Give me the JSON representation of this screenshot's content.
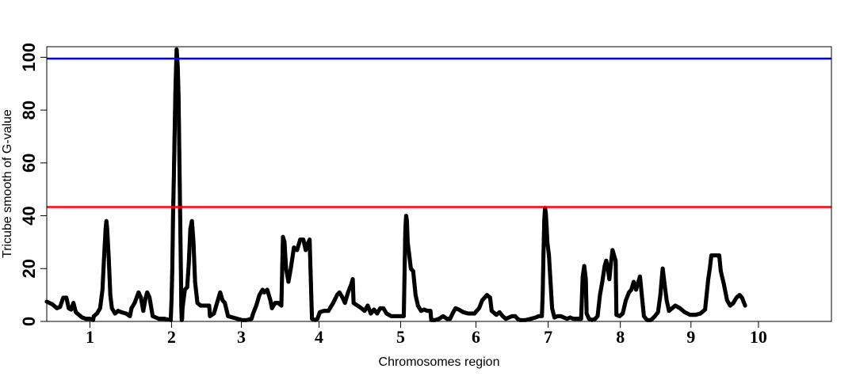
{
  "chart_data": {
    "type": "scatter",
    "title": "",
    "xlabel": "Chromosomes region",
    "ylabel": "Tricube smooth of G-value",
    "xlim": [
      0.45,
      10.45
    ],
    "ylim": [
      0,
      104
    ],
    "yticks": [
      0,
      20,
      40,
      60,
      80,
      100
    ],
    "x_tick_labels": [
      {
        "label": "1",
        "x": 1.0
      },
      {
        "label": "2",
        "x": 2.04
      },
      {
        "label": "3",
        "x": 2.93
      },
      {
        "label": "4",
        "x": 3.92
      },
      {
        "label": "5",
        "x": 4.96
      },
      {
        "label": "6",
        "x": 5.92
      },
      {
        "label": "7",
        "x": 6.84
      },
      {
        "label": "8",
        "x": 7.76
      },
      {
        "label": "9",
        "x": 8.66
      },
      {
        "label": "10",
        "x": 9.52
      }
    ],
    "threshold_lines": [
      {
        "y": 99.5,
        "color": "#0000ff"
      },
      {
        "y": 43.3,
        "color": "#ff0000"
      }
    ],
    "point_color": "#000000",
    "line_color": "#555555",
    "grid": false,
    "legend": "none",
    "series": [
      {
        "points": [
          [
            0.45,
            7.5
          ],
          [
            0.52,
            6.5
          ],
          [
            0.58,
            5.0
          ],
          [
            0.62,
            5.5
          ],
          [
            0.66,
            9.0
          ],
          [
            0.7,
            9.0
          ],
          [
            0.73,
            5.0
          ],
          [
            0.76,
            4.5
          ],
          [
            0.79,
            7.0
          ],
          [
            0.82,
            3.5
          ],
          [
            0.86,
            2.5
          ],
          [
            0.9,
            1.5
          ],
          [
            0.95,
            1.0
          ],
          [
            1.0,
            1.0
          ],
          [
            1.04,
            0.5
          ],
          [
            1.05,
            2.0
          ],
          [
            1.09,
            3.0
          ],
          [
            1.13,
            5.0
          ],
          [
            1.16,
            12.0
          ],
          [
            1.18,
            24.0
          ],
          [
            1.2,
            35.0
          ],
          [
            1.21,
            38.0
          ],
          [
            1.22,
            35.0
          ],
          [
            1.24,
            24.0
          ],
          [
            1.26,
            10.0
          ],
          [
            1.28,
            5.0
          ],
          [
            1.32,
            3.0
          ],
          [
            1.36,
            4.0
          ],
          [
            1.4,
            3.5
          ],
          [
            1.46,
            3.0
          ],
          [
            1.51,
            2.0
          ],
          [
            1.53,
            5.0
          ],
          [
            1.57,
            7.0
          ],
          [
            1.62,
            11.0
          ],
          [
            1.65,
            9.0
          ],
          [
            1.68,
            4.0
          ],
          [
            1.71,
            9.0
          ],
          [
            1.73,
            11.0
          ],
          [
            1.76,
            9.0
          ],
          [
            1.8,
            2.0
          ],
          [
            1.88,
            1.0
          ],
          [
            1.95,
            1.0
          ],
          [
            2.03,
            0.5
          ],
          [
            2.04,
            8.0
          ],
          [
            2.05,
            20.0
          ],
          [
            2.06,
            41.0
          ],
          [
            2.07,
            55.0
          ],
          [
            2.08,
            72.0
          ],
          [
            2.09,
            88.0
          ],
          [
            2.1,
            98.0
          ],
          [
            2.105,
            103.0
          ],
          [
            2.11,
            101.0
          ],
          [
            2.12,
            96.0
          ],
          [
            2.13,
            85.0
          ],
          [
            2.14,
            62.0
          ],
          [
            2.15,
            40.0
          ],
          [
            2.16,
            18.0
          ],
          [
            2.165,
            5.0
          ],
          [
            2.17,
            0.5
          ],
          [
            2.175,
            1.0
          ],
          [
            2.18,
            5.0
          ],
          [
            2.21,
            12.0
          ],
          [
            2.24,
            13.0
          ],
          [
            2.26,
            22.0
          ],
          [
            2.28,
            35.0
          ],
          [
            2.3,
            38.0
          ],
          [
            2.32,
            30.0
          ],
          [
            2.34,
            15.0
          ],
          [
            2.37,
            7.0
          ],
          [
            2.41,
            6.0
          ],
          [
            2.47,
            6.0
          ],
          [
            2.52,
            6.0
          ],
          [
            2.53,
            2.0
          ],
          [
            2.58,
            3.0
          ],
          [
            2.62,
            7.0
          ],
          [
            2.66,
            11.0
          ],
          [
            2.69,
            8.0
          ],
          [
            2.72,
            7.0
          ],
          [
            2.76,
            2.0
          ],
          [
            2.82,
            1.5
          ],
          [
            2.88,
            1.0
          ],
          [
            2.94,
            0.5
          ],
          [
            3.0,
            0.5
          ],
          [
            3.06,
            1.0
          ],
          [
            3.08,
            3.0
          ],
          [
            3.12,
            6.0
          ],
          [
            3.16,
            10.0
          ],
          [
            3.2,
            12.0
          ],
          [
            3.22,
            11.0
          ],
          [
            3.26,
            12.0
          ],
          [
            3.3,
            8.0
          ],
          [
            3.32,
            5.0
          ],
          [
            3.36,
            7.0
          ],
          [
            3.4,
            7.0
          ],
          [
            3.44,
            6.0
          ],
          [
            3.46,
            32.0
          ],
          [
            3.48,
            30.0
          ],
          [
            3.5,
            20.0
          ],
          [
            3.53,
            15.0
          ],
          [
            3.56,
            20.0
          ],
          [
            3.6,
            28.0
          ],
          [
            3.64,
            27.0
          ],
          [
            3.68,
            31.0
          ],
          [
            3.72,
            31.0
          ],
          [
            3.75,
            27.0
          ],
          [
            3.77,
            29.0
          ],
          [
            3.8,
            31.0
          ],
          [
            3.83,
            1.0
          ],
          [
            3.87,
            0.5
          ],
          [
            3.9,
            1.0
          ],
          [
            3.93,
            3.5
          ],
          [
            3.98,
            4.0
          ],
          [
            4.04,
            4.0
          ],
          [
            4.1,
            7.0
          ],
          [
            4.15,
            10.0
          ],
          [
            4.18,
            11.0
          ],
          [
            4.22,
            9.0
          ],
          [
            4.25,
            7.0
          ],
          [
            4.29,
            11.0
          ],
          [
            4.33,
            14.0
          ],
          [
            4.35,
            16.0
          ],
          [
            4.36,
            7.0
          ],
          [
            4.41,
            6.0
          ],
          [
            4.46,
            5.0
          ],
          [
            4.5,
            4.0
          ],
          [
            4.54,
            6.0
          ],
          [
            4.58,
            3.0
          ],
          [
            4.62,
            4.5
          ],
          [
            4.66,
            3.0
          ],
          [
            4.7,
            5.0
          ],
          [
            4.74,
            5.0
          ],
          [
            4.78,
            3.0
          ],
          [
            4.84,
            2.0
          ],
          [
            4.9,
            2.0
          ],
          [
            4.95,
            2.0
          ],
          [
            5.0,
            2.0
          ],
          [
            5.02,
            35.0
          ],
          [
            5.03,
            40.0
          ],
          [
            5.04,
            38.0
          ],
          [
            5.05,
            30.0
          ],
          [
            5.07,
            25.0
          ],
          [
            5.09,
            20.0
          ],
          [
            5.12,
            19.0
          ],
          [
            5.15,
            10.0
          ],
          [
            5.18,
            6.0
          ],
          [
            5.22,
            4.0
          ],
          [
            5.26,
            4.5
          ],
          [
            5.3,
            4.0
          ],
          [
            5.34,
            4.0
          ],
          [
            5.35,
            0.5
          ],
          [
            5.4,
            0.5
          ],
          [
            5.45,
            1.0
          ],
          [
            5.5,
            2.0
          ],
          [
            5.55,
            1.0
          ],
          [
            5.59,
            1.0
          ],
          [
            5.63,
            3.5
          ],
          [
            5.66,
            5.0
          ],
          [
            5.7,
            4.5
          ],
          [
            5.76,
            3.5
          ],
          [
            5.82,
            3.0
          ],
          [
            5.9,
            3.0
          ],
          [
            5.96,
            5.0
          ],
          [
            6.0,
            8.0
          ],
          [
            6.06,
            10.0
          ],
          [
            6.1,
            9.0
          ],
          [
            6.12,
            4.0
          ],
          [
            6.18,
            2.5
          ],
          [
            6.22,
            3.5
          ],
          [
            6.26,
            2.0
          ],
          [
            6.3,
            1.0
          ],
          [
            6.34,
            1.5
          ],
          [
            6.38,
            2.0
          ],
          [
            6.42,
            2.0
          ],
          [
            6.45,
            1.0
          ],
          [
            6.48,
            0.5
          ],
          [
            6.55,
            0.5
          ],
          [
            6.62,
            1.0
          ],
          [
            6.68,
            1.5
          ],
          [
            6.72,
            2.0
          ],
          [
            6.76,
            2.0
          ],
          [
            6.77,
            10.0
          ],
          [
            6.78,
            25.0
          ],
          [
            6.79,
            38.0
          ],
          [
            6.8,
            43.0
          ],
          [
            6.81,
            41.0
          ],
          [
            6.82,
            36.0
          ],
          [
            6.83,
            30.0
          ],
          [
            6.85,
            25.0
          ],
          [
            6.87,
            15.0
          ],
          [
            6.89,
            5.0
          ],
          [
            6.92,
            1.5
          ],
          [
            6.96,
            2.0
          ],
          [
            7.0,
            2.0
          ],
          [
            7.04,
            1.5
          ],
          [
            7.08,
            1.0
          ],
          [
            7.12,
            1.5
          ],
          [
            7.16,
            1.0
          ],
          [
            7.2,
            1.0
          ],
          [
            7.26,
            1.0
          ],
          [
            7.28,
            17.0
          ],
          [
            7.3,
            21.0
          ],
          [
            7.32,
            16.0
          ],
          [
            7.33,
            3.0
          ],
          [
            7.36,
            1.0
          ],
          [
            7.4,
            0.5
          ],
          [
            7.44,
            1.0
          ],
          [
            7.47,
            2.0
          ],
          [
            7.5,
            10.0
          ],
          [
            7.53,
            15.0
          ],
          [
            7.56,
            21.0
          ],
          [
            7.58,
            23.0
          ],
          [
            7.6,
            20.0
          ],
          [
            7.62,
            16.0
          ],
          [
            7.64,
            22.0
          ],
          [
            7.66,
            27.0
          ],
          [
            7.68,
            25.0
          ],
          [
            7.7,
            23.0
          ],
          [
            7.71,
            2.5
          ],
          [
            7.75,
            2.0
          ],
          [
            7.79,
            3.0
          ],
          [
            7.83,
            8.0
          ],
          [
            7.87,
            11.0
          ],
          [
            7.9,
            12.0
          ],
          [
            7.93,
            15.0
          ],
          [
            7.96,
            12.0
          ],
          [
            7.99,
            15.0
          ],
          [
            8.01,
            17.0
          ],
          [
            8.02,
            14.0
          ],
          [
            8.06,
            2.0
          ],
          [
            8.1,
            0.5
          ],
          [
            8.15,
            0.5
          ],
          [
            8.2,
            2.0
          ],
          [
            8.24,
            3.5
          ],
          [
            8.27,
            10.0
          ],
          [
            8.29,
            17.0
          ],
          [
            8.3,
            20.0
          ],
          [
            8.32,
            15.0
          ],
          [
            8.35,
            8.0
          ],
          [
            8.38,
            4.0
          ],
          [
            8.42,
            5.0
          ],
          [
            8.46,
            6.0
          ],
          [
            8.52,
            5.0
          ],
          [
            8.58,
            3.5
          ],
          [
            8.65,
            2.5
          ],
          [
            8.72,
            2.5
          ],
          [
            8.78,
            3.0
          ],
          [
            8.84,
            4.5
          ],
          [
            8.88,
            16.0
          ],
          [
            8.9,
            20.0
          ],
          [
            8.92,
            25.0
          ],
          [
            8.96,
            25.0
          ],
          [
            8.99,
            25.0
          ],
          [
            9.02,
            25.0
          ],
          [
            9.04,
            19.0
          ],
          [
            9.08,
            14.0
          ],
          [
            9.12,
            8.0
          ],
          [
            9.16,
            6.0
          ],
          [
            9.2,
            7.0
          ],
          [
            9.24,
            9.0
          ],
          [
            9.28,
            10.0
          ],
          [
            9.31,
            9.0
          ],
          [
            9.35,
            6.0
          ]
        ]
      }
    ]
  }
}
